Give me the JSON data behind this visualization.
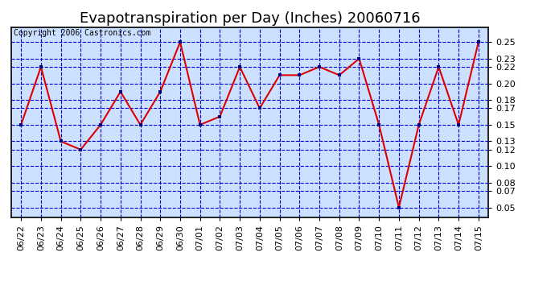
{
  "title": "Evapotranspiration per Day (Inches) 20060716",
  "copyright": "Copyright 2006 Castronics.com",
  "dates": [
    "06/22",
    "06/23",
    "06/24",
    "06/25",
    "06/26",
    "06/27",
    "06/28",
    "06/29",
    "06/30",
    "07/01",
    "07/02",
    "07/03",
    "07/04",
    "07/05",
    "07/06",
    "07/07",
    "07/08",
    "07/09",
    "07/10",
    "07/11",
    "07/12",
    "07/13",
    "07/14",
    "07/15"
  ],
  "values": [
    0.15,
    0.22,
    0.13,
    0.12,
    0.15,
    0.19,
    0.15,
    0.19,
    0.25,
    0.15,
    0.16,
    0.22,
    0.17,
    0.21,
    0.21,
    0.22,
    0.21,
    0.23,
    0.15,
    0.05,
    0.15,
    0.22,
    0.15,
    0.25
  ],
  "line_color": "#dd0000",
  "marker_color": "#000080",
  "plot_bg": "#cce0ff",
  "grid_color": "#0000cc",
  "border_color": "#000000",
  "yticks": [
    0.05,
    0.07,
    0.08,
    0.1,
    0.12,
    0.13,
    0.15,
    0.17,
    0.18,
    0.2,
    0.22,
    0.23,
    0.25
  ],
  "ylim": [
    0.038,
    0.268
  ],
  "title_fontsize": 13,
  "tick_fontsize": 8,
  "copyright_fontsize": 7
}
